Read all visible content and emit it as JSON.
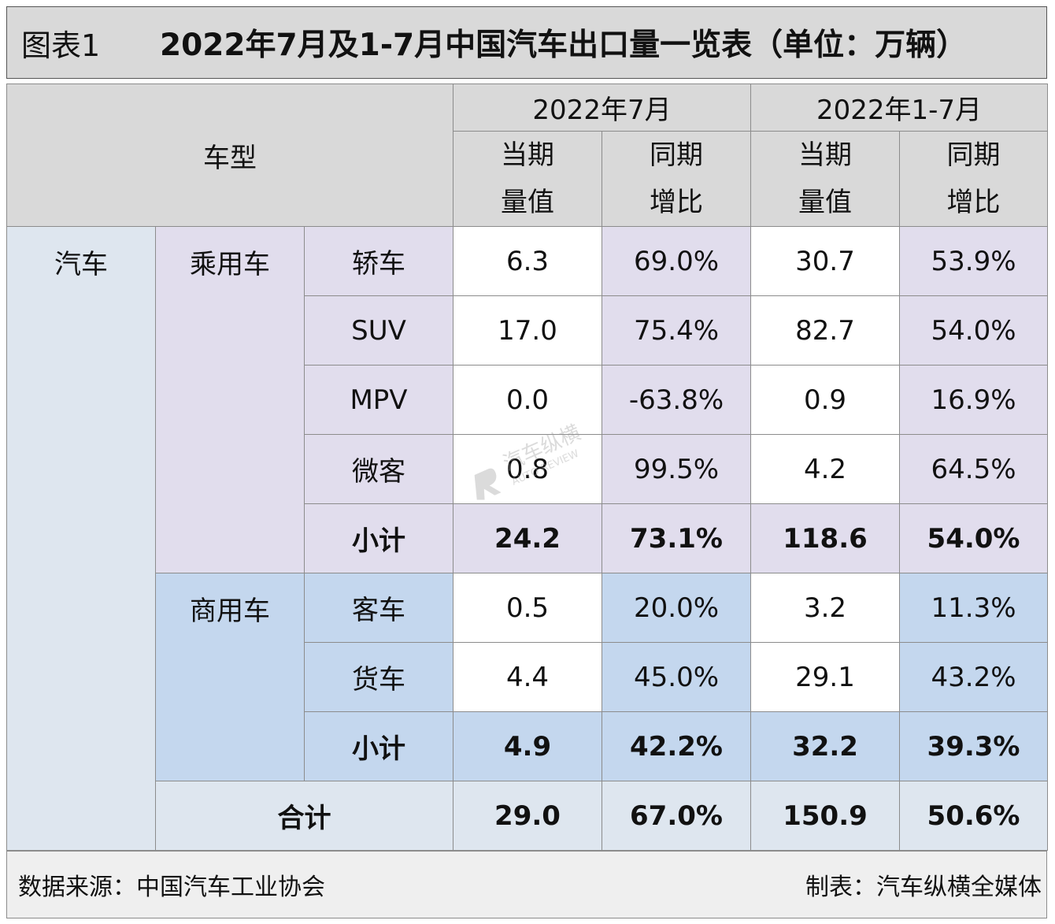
{
  "title": {
    "prefix": "图表1",
    "main": "2022年7月及1-7月中国汽车出口量一览表（单位：万辆）"
  },
  "header": {
    "type_label": "车型",
    "period_july": "2022年7月",
    "period_ytd": "2022年1-7月",
    "current_value_l1": "当期",
    "current_value_l2": "量值",
    "yoy_l1": "同期",
    "yoy_l2": "增比"
  },
  "categories": {
    "car": "汽车",
    "passenger": "乘用车",
    "commercial": "商用车"
  },
  "rows": {
    "sedan": {
      "name": "轿车",
      "jul_value": "6.3",
      "jul_yoy": "69.0%",
      "ytd_value": "30.7",
      "ytd_yoy": "53.9%"
    },
    "suv": {
      "name": "SUV",
      "jul_value": "17.0",
      "jul_yoy": "75.4%",
      "ytd_value": "82.7",
      "ytd_yoy": "54.0%"
    },
    "mpv": {
      "name": "MPV",
      "jul_value": "0.0",
      "jul_yoy": "-63.8%",
      "ytd_value": "0.9",
      "ytd_yoy": "16.9%"
    },
    "minibus": {
      "name": "微客",
      "jul_value": "0.8",
      "jul_yoy": "99.5%",
      "ytd_value": "4.2",
      "ytd_yoy": "64.5%"
    },
    "pass_subtotal": {
      "name": "小计",
      "jul_value": "24.2",
      "jul_yoy": "73.1%",
      "ytd_value": "118.6",
      "ytd_yoy": "54.0%"
    },
    "bus": {
      "name": "客车",
      "jul_value": "0.5",
      "jul_yoy": "20.0%",
      "ytd_value": "3.2",
      "ytd_yoy": "11.3%"
    },
    "truck": {
      "name": "货车",
      "jul_value": "4.4",
      "jul_yoy": "45.0%",
      "ytd_value": "29.1",
      "ytd_yoy": "43.2%"
    },
    "comm_subtotal": {
      "name": "小计",
      "jul_value": "4.9",
      "jul_yoy": "42.2%",
      "ytd_value": "32.2",
      "ytd_yoy": "39.3%"
    },
    "total": {
      "name": "合计",
      "jul_value": "29.0",
      "jul_yoy": "67.0%",
      "ytd_value": "150.9",
      "ytd_yoy": "50.6%"
    }
  },
  "footer": {
    "source": "数据来源：中国汽车工业协会",
    "maker": "制表：汽车纵横全媒体"
  },
  "watermark": {
    "text_cn": "汽车纵横",
    "text_en": "AUTO REVIEW"
  },
  "colors": {
    "header_bg": "#d9d9d9",
    "car_bg": "#dee6ef",
    "passenger_bg": "#e1dded",
    "commercial_bg": "#c4d7ee"
  }
}
